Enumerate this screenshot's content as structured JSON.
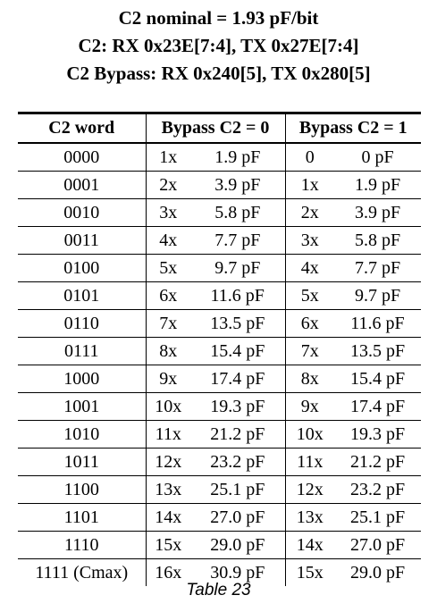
{
  "header": {
    "line1": "C2 nominal = 1.93 pF/bit",
    "line2": "C2:  RX 0x23E[7:4], TX 0x27E[7:4]",
    "line3": "C2 Bypass: RX 0x240[5], TX 0x280[5]"
  },
  "table": {
    "columns": [
      "C2 word",
      "Bypass C2 = 0",
      "Bypass C2 = 1"
    ],
    "rows": [
      {
        "word": "0000",
        "b0_mult": "1x",
        "b0_cap": "1.9 pF",
        "b1_mult": "0",
        "b1_cap": "0 pF"
      },
      {
        "word": "0001",
        "b0_mult": "2x",
        "b0_cap": "3.9 pF",
        "b1_mult": "1x",
        "b1_cap": "1.9 pF"
      },
      {
        "word": "0010",
        "b0_mult": "3x",
        "b0_cap": "5.8 pF",
        "b1_mult": "2x",
        "b1_cap": "3.9 pF"
      },
      {
        "word": "0011",
        "b0_mult": "4x",
        "b0_cap": "7.7 pF",
        "b1_mult": "3x",
        "b1_cap": "5.8 pF"
      },
      {
        "word": "0100",
        "b0_mult": "5x",
        "b0_cap": "9.7 pF",
        "b1_mult": "4x",
        "b1_cap": "7.7 pF"
      },
      {
        "word": "0101",
        "b0_mult": "6x",
        "b0_cap": "11.6 pF",
        "b1_mult": "5x",
        "b1_cap": "9.7 pF"
      },
      {
        "word": "0110",
        "b0_mult": "7x",
        "b0_cap": "13.5 pF",
        "b1_mult": "6x",
        "b1_cap": "11.6 pF"
      },
      {
        "word": "0111",
        "b0_mult": "8x",
        "b0_cap": "15.4 pF",
        "b1_mult": "7x",
        "b1_cap": "13.5 pF"
      },
      {
        "word": "1000",
        "b0_mult": "9x",
        "b0_cap": "17.4 pF",
        "b1_mult": "8x",
        "b1_cap": "15.4 pF"
      },
      {
        "word": "1001",
        "b0_mult": "10x",
        "b0_cap": "19.3 pF",
        "b1_mult": "9x",
        "b1_cap": "17.4 pF"
      },
      {
        "word": "1010",
        "b0_mult": "11x",
        "b0_cap": "21.2 pF",
        "b1_mult": "10x",
        "b1_cap": "19.3 pF"
      },
      {
        "word": "1011",
        "b0_mult": "12x",
        "b0_cap": "23.2 pF",
        "b1_mult": "11x",
        "b1_cap": "21.2 pF"
      },
      {
        "word": "1100",
        "b0_mult": "13x",
        "b0_cap": "25.1 pF",
        "b1_mult": "12x",
        "b1_cap": "23.2 pF"
      },
      {
        "word": "1101",
        "b0_mult": "14x",
        "b0_cap": "27.0 pF",
        "b1_mult": "13x",
        "b1_cap": "25.1 pF"
      },
      {
        "word": "1110",
        "b0_mult": "15x",
        "b0_cap": "29.0 pF",
        "b1_mult": "14x",
        "b1_cap": "27.0 pF"
      },
      {
        "word": "1111 (Cmax)",
        "b0_mult": "16x",
        "b0_cap": "30.9 pF",
        "b1_mult": "15x",
        "b1_cap": "29.0 pF"
      }
    ]
  },
  "caption": "Table 23"
}
